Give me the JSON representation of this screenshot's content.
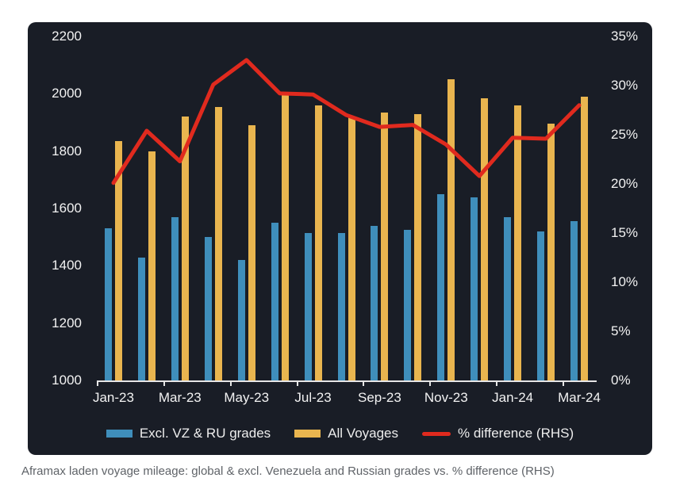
{
  "caption": "Aframax laden voyage mileage: global & excl. Venezuela and Russian grades vs. % difference (RHS)",
  "colors": {
    "page_bg": "#FFFFFF",
    "card_bg": "#191D26",
    "axis_text": "#F2F2F2",
    "axis_line": "#E6E6E6",
    "caption_text": "#5F6368",
    "legend_text": "#EDEDED",
    "blue_bar": "#3F8EBB",
    "yellow_bar": "#E9B54F",
    "red_line": "#E02A1E"
  },
  "chart_data": {
    "type": "bar",
    "subtype": "grouped-bars-with-line-overlay",
    "categories": [
      "Jan-23",
      "Feb-23",
      "Mar-23",
      "Apr-23",
      "May-23",
      "Jun-23",
      "Jul-23",
      "Aug-23",
      "Sep-23",
      "Oct-23",
      "Nov-23",
      "Dec-23",
      "Jan-24",
      "Feb-24",
      "Mar-24"
    ],
    "x_tick_labels": [
      "Jan-23",
      "Mar-23",
      "May-23",
      "Jul-23",
      "Sep-23",
      "Nov-23",
      "Jan-24",
      "Mar-24"
    ],
    "series": [
      {
        "name": "Excl. VZ & RU grades",
        "type": "bar",
        "axis": "left",
        "color": "#3F8EBB",
        "values": [
          1530,
          1430,
          1570,
          1500,
          1420,
          1550,
          1515,
          1515,
          1540,
          1525,
          1650,
          1640,
          1570,
          1520,
          1555
        ]
      },
      {
        "name": "All Voyages",
        "type": "bar",
        "axis": "left",
        "color": "#E9B54F",
        "values": [
          1835,
          1800,
          1920,
          1955,
          1890,
          2000,
          1960,
          1920,
          1935,
          1930,
          2050,
          1985,
          1960,
          1895,
          1990
        ]
      },
      {
        "name": "% difference (RHS)",
        "type": "line",
        "axis": "right",
        "color": "#E02A1E",
        "values": [
          20.1,
          25.4,
          22.3,
          30.1,
          32.6,
          29.2,
          29.1,
          27.0,
          25.8,
          26.0,
          24.0,
          20.8,
          24.7,
          24.6,
          28.0
        ]
      }
    ],
    "left_axis": {
      "min": 1000,
      "max": 2200,
      "step": 200,
      "tick_labels": [
        "2200",
        "2000",
        "1800",
        "1600",
        "1400",
        "1200",
        "1000"
      ]
    },
    "right_axis": {
      "min": 0,
      "max": 35,
      "step": 5,
      "tick_labels": [
        "35%",
        "30%",
        "25%",
        "20%",
        "15%",
        "10%",
        "5%",
        "0%"
      ]
    },
    "grid": false,
    "legend_position": "bottom",
    "title": ""
  }
}
